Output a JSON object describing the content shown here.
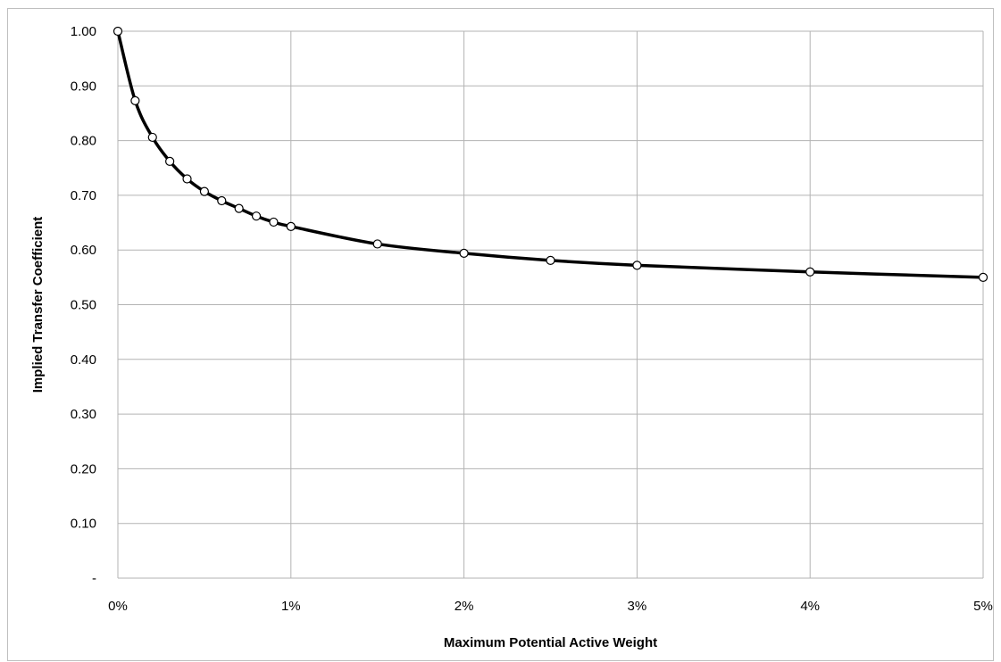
{
  "colors": {
    "background": "#ffffff",
    "border": "#bfbfbf",
    "grid": "#b3b3b3",
    "line": "#000000",
    "marker_fill": "#ffffff",
    "marker_stroke": "#000000"
  },
  "chart_data": {
    "type": "line",
    "title": "",
    "xlabel": "Maximum Potential Active Weight",
    "ylabel": "Implied Transfer Coefficient",
    "xlim": [
      0,
      5
    ],
    "ylim": [
      0,
      1
    ],
    "x_unit": "percent",
    "x_ticks": [
      0,
      1,
      2,
      3,
      4,
      5
    ],
    "x_tick_labels": [
      "0%",
      "1%",
      "2%",
      "3%",
      "4%",
      "5%"
    ],
    "y_ticks": [
      0,
      0.1,
      0.2,
      0.3,
      0.4,
      0.5,
      0.6,
      0.7,
      0.8,
      0.9,
      1.0
    ],
    "y_tick_labels": [
      "-",
      "0.10",
      "0.20",
      "0.30",
      "0.40",
      "0.50",
      "0.60",
      "0.70",
      "0.80",
      "0.90",
      "1.00"
    ],
    "grid": true,
    "legend": "none",
    "markers": "circle-open",
    "series": [
      {
        "x": [
          0,
          0.1,
          0.2,
          0.3,
          0.4,
          0.5,
          0.6,
          0.7,
          0.8,
          0.9,
          1.0,
          1.5,
          2.0,
          2.5,
          3.0,
          4.0,
          5.0
        ],
        "values": [
          1.0,
          0.873,
          0.806,
          0.762,
          0.73,
          0.707,
          0.69,
          0.676,
          0.662,
          0.651,
          0.643,
          0.611,
          0.594,
          0.581,
          0.572,
          0.56,
          0.55
        ]
      }
    ]
  }
}
